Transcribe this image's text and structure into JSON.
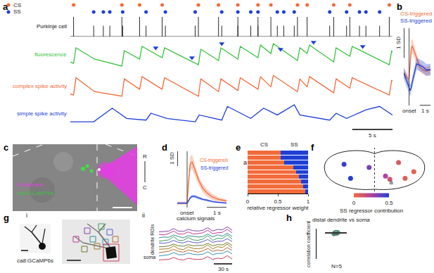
{
  "chart_data": [
    {
      "panel": "a",
      "type": "line",
      "xlim": [
        0,
        40
      ],
      "tick_labels": false,
      "events": [
        {
          "name": "CS",
          "color": "#f26b3a",
          "marker": "circle",
          "x": [
            0.4,
            6.4,
            8.6,
            11.4,
            15.9,
            18.4,
            20.8,
            23.3,
            24.9,
            28.2,
            29.4,
            32.7,
            34.7,
            39.6
          ]
        },
        {
          "name": "SS",
          "color": "#1f3fd6",
          "marker": "circle",
          "x": [
            2.9,
            4.1,
            4.9,
            6.5,
            9.4,
            11.8,
            15.5,
            18.8,
            20.8,
            22.4,
            23.3,
            25.7,
            26.5,
            27.8,
            32.2,
            34.3,
            35.9,
            36.7,
            38.4
          ]
        }
      ],
      "tracks": [
        {
          "name": "Purkinje cell",
          "type": "spikes",
          "color": "#111111",
          "ylim": [
            0,
            1
          ],
          "values": [
            1,
            0.55
          ]
        },
        {
          "name": "fluorescence",
          "type": "line",
          "color": "#35c23a",
          "ylim": [
            0,
            1.1
          ],
          "x": [
            0,
            0.4,
            0.7,
            3,
            6.4,
            6.7,
            8.6,
            8.9,
            11.4,
            11.7,
            15.9,
            16.2,
            18.4,
            18.7,
            20.8,
            21.1,
            23.3,
            23.6,
            24.9,
            25.2,
            28.2,
            28.5,
            29.4,
            29.7,
            32.7,
            33,
            34.7,
            35,
            39.6,
            39.9,
            40
          ],
          "values": [
            0.3,
            0.25,
            0.8,
            0.4,
            0.15,
            0.7,
            0.4,
            0.85,
            0.45,
            0.8,
            0.2,
            0.75,
            0.35,
            0.8,
            0.4,
            0.85,
            0.45,
            0.9,
            0.6,
            0.95,
            0.35,
            0.8,
            0.6,
            0.9,
            0.3,
            0.8,
            0.5,
            0.85,
            0.2,
            0.7,
            0.65
          ],
          "arrows": {
            "color": "#1f3fd6",
            "marker": "triangle-down",
            "x": [
              10.6,
              15.1,
              18.8,
              26.1,
              30.2,
              36.3
            ],
            "y": [
              0.8,
              0.45,
              0.95,
              0.75,
              1.0,
              0.85
            ]
          }
        },
        {
          "name": "complex spike activity",
          "type": "line",
          "color": "#f26b3a",
          "ylim": [
            0,
            1.1
          ],
          "x": [
            0,
            0.4,
            0.7,
            3,
            6.4,
            6.7,
            8.6,
            8.9,
            11.4,
            11.7,
            15.9,
            16.2,
            18.4,
            18.7,
            20.8,
            21.1,
            23.3,
            23.6,
            24.9,
            25.2,
            28.2,
            28.5,
            29.4,
            29.7,
            32.7,
            33,
            34.7,
            35,
            39.6,
            39.9,
            40
          ],
          "values": [
            0.2,
            0.15,
            0.9,
            0.3,
            0.1,
            0.85,
            0.4,
            0.95,
            0.4,
            0.9,
            0.1,
            0.85,
            0.3,
            0.85,
            0.35,
            0.9,
            0.4,
            0.95,
            0.5,
            1.0,
            0.3,
            0.85,
            0.5,
            0.95,
            0.25,
            0.85,
            0.45,
            0.9,
            0.15,
            0.8,
            0.75
          ]
        },
        {
          "name": "simple spike activity",
          "type": "line",
          "color": "#1f3fd6",
          "ylim": [
            0,
            0.7
          ],
          "x": [
            0,
            2.9,
            5.2,
            7,
            9.4,
            10,
            12,
            15.5,
            16,
            18.8,
            19.5,
            22.4,
            24,
            25.7,
            27.8,
            28.5,
            32.2,
            33,
            34.3,
            36.7,
            38.4,
            40
          ],
          "values": [
            0.1,
            0.1,
            0.5,
            0.2,
            0.15,
            0.35,
            0.2,
            0.1,
            0.3,
            0.15,
            0.55,
            0.2,
            0.5,
            0.3,
            0.6,
            0.3,
            0.15,
            0.35,
            0.2,
            0.45,
            0.55,
            0.3
          ]
        }
      ],
      "scalebar": {
        "length": 5,
        "label": "5 s"
      }
    },
    {
      "panel": "b",
      "type": "line",
      "xlim": [
        -0.5,
        2
      ],
      "ylim": [
        -1.2,
        1.4
      ],
      "tick_labels": false,
      "x": [
        -0.5,
        -0.3,
        -0.1,
        0,
        0.1,
        0.2,
        0.3,
        0.5,
        0.7,
        1.0,
        1.3,
        1.6,
        2.0
      ],
      "series": [
        {
          "name": "CS-triggered",
          "color": "#f26b3a",
          "values": [
            -0.1,
            -0.2,
            -0.3,
            -0.3,
            0.3,
            0.7,
            0.8,
            0.6,
            0.35,
            0.1,
            0,
            -0.05,
            0
          ],
          "error": [
            0.15,
            0.15,
            0.15,
            0.15,
            0.2,
            0.25,
            0.25,
            0.2,
            0.2,
            0.15,
            0.15,
            0.15,
            0.15
          ]
        },
        {
          "name": "SS-triggered",
          "color": "#1f3fd6",
          "values": [
            -0.1,
            -0.3,
            -0.5,
            -0.6,
            -0.7,
            -0.6,
            -0.4,
            -0.1,
            0.2,
            0.15,
            0.1,
            0,
            0
          ],
          "error": [
            0.2,
            0.2,
            0.2,
            0.2,
            0.2,
            0.2,
            0.2,
            0.2,
            0.2,
            0.2,
            0.2,
            0.2,
            0.2
          ]
        }
      ],
      "onset": 0,
      "onset_label": "onset",
      "scalebars": [
        {
          "axis": "y",
          "length": 1,
          "label": "1 SD"
        },
        {
          "axis": "x",
          "length": 1,
          "label": "1 s"
        }
      ]
    },
    {
      "panel": "d",
      "type": "line",
      "xlim": [
        -0.5,
        2
      ],
      "ylim": [
        -0.3,
        3.5
      ],
      "tick_labels": false,
      "x": [
        -0.5,
        -0.2,
        0,
        0.05,
        0.15,
        0.25,
        0.4,
        0.6,
        0.8,
        1.0,
        1.3,
        1.6,
        2.0
      ],
      "series": [
        {
          "name": "CS-triggered",
          "color": "#f26b3a",
          "values": [
            0,
            0,
            0,
            1.0,
            2.6,
            2.8,
            2.2,
            1.5,
            1.0,
            0.7,
            0.4,
            0.25,
            0.15
          ],
          "error": [
            0.1,
            0.1,
            0.1,
            0.3,
            0.5,
            0.5,
            0.4,
            0.3,
            0.3,
            0.25,
            0.2,
            0.15,
            0.1
          ]
        },
        {
          "name": "SS-triggered",
          "color": "#1f3fd6",
          "values": [
            0,
            0,
            0,
            0.1,
            0.35,
            0.45,
            0.45,
            0.35,
            0.25,
            0.2,
            0.1,
            0.05,
            0.0
          ],
          "error": [
            0.05,
            0.05,
            0.05,
            0.08,
            0.1,
            0.1,
            0.1,
            0.1,
            0.08,
            0.08,
            0.06,
            0.05,
            0.05
          ]
        }
      ],
      "onset": 0,
      "onset_label": "onset",
      "scalebars": [
        {
          "axis": "y",
          "length": 1,
          "label": "1 SD"
        },
        {
          "axis": "x",
          "length": 1,
          "label": "1 s"
        }
      ]
    },
    {
      "panel": "e",
      "type": "bar",
      "orientation": "horizontal",
      "stacked": true,
      "categories": [
        null,
        null,
        "a",
        null,
        null,
        null,
        null,
        null,
        null
      ],
      "series": [
        {
          "name": "CS",
          "color": "#f26b3a",
          "values": [
            0.55,
            0.55,
            0.6,
            0.75,
            0.8,
            0.85,
            0.88,
            0.92,
            0.95
          ]
        },
        {
          "name": "SS",
          "color": "#1f3fd6",
          "values": [
            0.45,
            0.45,
            0.4,
            0.25,
            0.2,
            0.15,
            0.12,
            0.08,
            0.05
          ]
        }
      ],
      "xlabel": "relative regressor weight",
      "xlim": [
        0,
        1
      ],
      "xticks": [
        0,
        0.5,
        1
      ]
    },
    {
      "panel": "f",
      "type": "scatter",
      "tick_labels": false,
      "xlim": [
        0,
        1
      ],
      "ylim": [
        0,
        1
      ],
      "x": [
        0.22,
        0.28,
        0.45,
        0.6,
        0.72,
        0.78,
        0.86,
        0.64
      ],
      "y": [
        0.62,
        0.3,
        0.55,
        0.35,
        0.66,
        0.3,
        0.45,
        0.28
      ],
      "values": [
        0.45,
        0.5,
        0.35,
        0.25,
        0.1,
        0.08,
        0.05,
        0.12
      ],
      "point_labels": [
        null,
        null,
        null,
        "a",
        null,
        null,
        null,
        null
      ],
      "colorbar": {
        "range": [
          0,
          0.5
        ],
        "ticks": [
          0,
          0.5
        ],
        "title": "SS regressor contribution"
      }
    },
    {
      "subpanel": "ii",
      "type": "line",
      "title": "calcium signals",
      "ylabel": "dendrite ROIs",
      "tick_labels": false,
      "x": [
        0,
        8,
        16,
        24,
        32,
        40,
        48,
        56,
        64,
        72,
        80,
        88,
        96,
        104,
        112,
        120
      ],
      "xlim": [
        0,
        120
      ],
      "ylim": [
        0,
        1
      ],
      "series": [
        {
          "color": "#8a3fb0",
          "values": [
            0.2,
            0.25,
            0.3,
            0.6,
            0.3,
            0.25,
            0.5,
            0.35,
            0.3,
            0.4,
            0.7,
            0.3,
            0.5,
            0.45,
            0.8,
            0.4
          ]
        },
        {
          "color": "#c0399a",
          "values": [
            0.25,
            0.2,
            0.35,
            0.65,
            0.3,
            0.3,
            0.55,
            0.3,
            0.35,
            0.45,
            0.75,
            0.35,
            0.45,
            0.5,
            0.85,
            0.45
          ]
        },
        {
          "color": "#2f8f8f",
          "values": [
            0.2,
            0.3,
            0.25,
            0.55,
            0.35,
            0.2,
            0.45,
            0.4,
            0.3,
            0.35,
            0.65,
            0.3,
            0.55,
            0.4,
            0.75,
            0.35
          ]
        },
        {
          "color": "#3a9e5a",
          "values": [
            0.15,
            0.2,
            0.3,
            0.7,
            0.25,
            0.25,
            0.6,
            0.3,
            0.25,
            0.4,
            0.8,
            0.25,
            0.5,
            0.45,
            0.9,
            0.4
          ]
        },
        {
          "color": "#5b5bd0",
          "values": [
            0.3,
            0.25,
            0.35,
            0.6,
            0.35,
            0.3,
            0.5,
            0.35,
            0.3,
            0.45,
            0.7,
            0.35,
            0.5,
            0.5,
            0.8,
            0.45
          ]
        },
        {
          "color": "#6c7a2a",
          "values": [
            0.2,
            0.2,
            0.3,
            0.5,
            0.3,
            0.25,
            0.45,
            0.3,
            0.35,
            0.35,
            0.6,
            0.3,
            0.45,
            0.4,
            0.7,
            0.35
          ]
        },
        {
          "color": "#a07a1f",
          "values": [
            0.25,
            0.3,
            0.3,
            0.65,
            0.3,
            0.2,
            0.55,
            0.35,
            0.3,
            0.4,
            0.75,
            0.3,
            0.55,
            0.45,
            0.85,
            0.4
          ]
        },
        {
          "color": "#b86a30",
          "values": [
            0.2,
            0.25,
            0.35,
            0.6,
            0.35,
            0.25,
            0.5,
            0.4,
            0.25,
            0.4,
            0.7,
            0.35,
            0.5,
            0.4,
            0.8,
            0.45
          ]
        },
        {
          "color": "#3a8fb0",
          "values": [
            0.15,
            0.25,
            0.3,
            0.55,
            0.3,
            0.3,
            0.5,
            0.35,
            0.3,
            0.35,
            0.65,
            0.3,
            0.45,
            0.45,
            0.75,
            0.4
          ]
        },
        {
          "name": "soma",
          "color": "#d23c5a",
          "values": [
            0.2,
            0.2,
            0.25,
            0.5,
            0.25,
            0.2,
            0.4,
            0.3,
            0.25,
            0.3,
            0.6,
            0.25,
            0.4,
            0.35,
            0.7,
            0.3
          ]
        }
      ],
      "scalebar": {
        "length": 30,
        "label": "30 s"
      }
    },
    {
      "panel": "h",
      "type": "scatter",
      "tick_labels": false,
      "title": "distal dendrite vs soma",
      "ylabel": "correlation coefficient",
      "xlim": [
        0,
        2
      ],
      "ylim": [
        0,
        1
      ],
      "color": "#6aa89a",
      "x": [
        0.9,
        1.05,
        0.95,
        1.1,
        1.0
      ],
      "values": [
        0.83,
        0.85,
        0.86,
        0.87,
        0.88
      ],
      "mean": 0.86,
      "error": 0.02,
      "annotation": "N=5"
    }
  ],
  "images": [
    {
      "panel": "c",
      "stain_labels": [
        {
          "text": "rhodamine",
          "color": "#e040e0"
        },
        {
          "text": "ca8:GCaMP6s",
          "color": "#40c040"
        }
      ],
      "orientation_labels": [
        "R",
        "C"
      ]
    },
    {
      "panel": "g",
      "subpanel": "i",
      "label": "ca8:GCaMP6s"
    }
  ]
}
